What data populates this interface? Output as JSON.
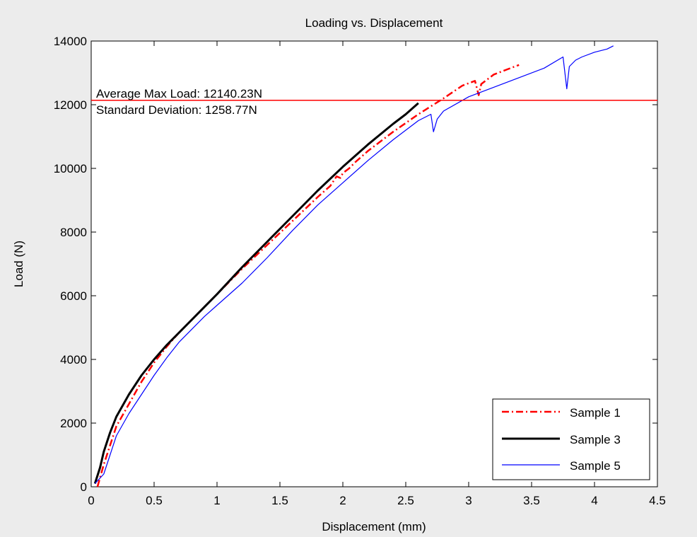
{
  "chart_data": {
    "type": "line",
    "title": "Loading vs. Displacement",
    "xlabel": "Displacement (mm)",
    "ylabel": "Load (N)",
    "xlim": [
      0,
      4.5
    ],
    "ylim": [
      0,
      14000
    ],
    "xticks": [
      0,
      0.5,
      1,
      1.5,
      2,
      2.5,
      3,
      3.5,
      4,
      4.5
    ],
    "xtick_labels": [
      "0",
      "0.5",
      "1",
      "1.5",
      "2",
      "2.5",
      "3",
      "3.5",
      "4",
      "4.5"
    ],
    "yticks": [
      0,
      2000,
      4000,
      6000,
      8000,
      10000,
      12000,
      14000
    ],
    "ytick_labels": [
      "0",
      "2000",
      "4000",
      "6000",
      "8000",
      "10000",
      "12000",
      "14000"
    ],
    "grid": false,
    "legend_position": "bottom-right",
    "series": [
      {
        "name": "Sample 1",
        "color": "#ff0000",
        "style": "dashdot",
        "x": [
          0.05,
          0.1,
          0.15,
          0.2,
          0.3,
          0.4,
          0.5,
          0.6,
          0.7,
          0.8,
          0.9,
          1.0,
          1.2,
          1.4,
          1.6,
          1.8,
          1.9,
          1.95,
          1.98,
          2.0,
          2.05,
          2.1,
          2.2,
          2.4,
          2.6,
          2.8,
          2.95,
          3.05,
          3.08,
          3.1,
          3.15,
          3.2,
          3.3,
          3.4
        ],
        "y": [
          0,
          700,
          1300,
          1900,
          2600,
          3300,
          3900,
          4400,
          4850,
          5250,
          5650,
          6050,
          6850,
          7600,
          8350,
          9100,
          9450,
          9750,
          9700,
          9850,
          10000,
          10200,
          10550,
          11150,
          11700,
          12200,
          12600,
          12750,
          12300,
          12650,
          12800,
          12950,
          13100,
          13250
        ]
      },
      {
        "name": "Sample 3",
        "color": "#000000",
        "style": "solid",
        "x": [
          0.03,
          0.07,
          0.1,
          0.15,
          0.2,
          0.3,
          0.4,
          0.5,
          0.6,
          0.7,
          0.8,
          0.9,
          1.0,
          1.2,
          1.4,
          1.6,
          1.8,
          2.0,
          2.2,
          2.4,
          2.5,
          2.6
        ],
        "y": [
          100,
          600,
          1100,
          1700,
          2200,
          2900,
          3500,
          4000,
          4450,
          4850,
          5250,
          5650,
          6050,
          6900,
          7700,
          8500,
          9300,
          10050,
          10750,
          11400,
          11700,
          12050
        ]
      },
      {
        "name": "Sample 5",
        "color": "#0000ff",
        "style": "solid",
        "x": [
          0.03,
          0.1,
          0.15,
          0.2,
          0.3,
          0.4,
          0.5,
          0.6,
          0.7,
          0.8,
          0.9,
          1.0,
          1.2,
          1.4,
          1.6,
          1.8,
          2.0,
          2.2,
          2.4,
          2.6,
          2.7,
          2.72,
          2.75,
          2.8,
          3.0,
          3.2,
          3.4,
          3.6,
          3.75,
          3.78,
          3.8,
          3.85,
          3.9,
          4.0,
          4.1,
          4.15
        ],
        "y": [
          100,
          400,
          1000,
          1600,
          2300,
          2900,
          3500,
          4050,
          4550,
          4950,
          5350,
          5700,
          6400,
          7200,
          8050,
          8850,
          9550,
          10250,
          10900,
          11500,
          11700,
          11150,
          11550,
          11800,
          12250,
          12550,
          12850,
          13150,
          13500,
          12500,
          13200,
          13400,
          13500,
          13650,
          13750,
          13850
        ]
      }
    ],
    "reference_line": {
      "y": 12140.23,
      "color": "#ff0000"
    },
    "annotations": [
      "Average Max Load: 12140.23N",
      "Standard Deviation: 1258.77N"
    ]
  }
}
